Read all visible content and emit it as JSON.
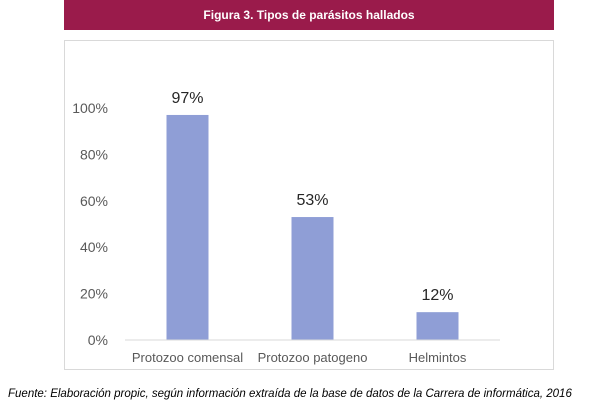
{
  "header": {
    "title": "Figura 3. Tipos de parásitos hallados"
  },
  "chart_data": {
    "type": "bar",
    "title": "",
    "xlabel": "",
    "ylabel": "",
    "categories": [
      "Protozoo comensal",
      "Protozoo patogeno",
      "Helmintos"
    ],
    "values": [
      97,
      53,
      12
    ],
    "data_labels": [
      "97%",
      "53%",
      "12%"
    ],
    "ylim": [
      0,
      100
    ],
    "yticks": [
      0,
      20,
      40,
      60,
      80,
      100
    ],
    "ytick_labels": [
      "0%",
      "20%",
      "40%",
      "60%",
      "80%",
      "100%"
    ],
    "grid": false,
    "legend": "none",
    "bar_color": "#8f9ed6"
  },
  "footer": {
    "source": "Fuente: Elaboración propic, según información extraída de la base de datos de la Carrera de informática, 2016"
  }
}
